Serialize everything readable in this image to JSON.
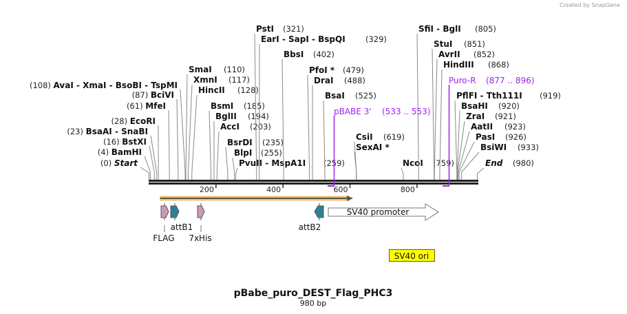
{
  "branding": "Created by SnapGene",
  "title": "pBabe_puro_DEST_Flag_PHC3",
  "length_label": "980 bp",
  "ruler": {
    "ticks": [
      200,
      400,
      600,
      800
    ],
    "total_bp": 980
  },
  "enzymes": [
    {
      "names": [
        "Start"
      ],
      "pos": "(0)",
      "italic": true
    },
    {
      "names": [
        "BamHI"
      ],
      "pos": "(4)"
    },
    {
      "names": [
        "BstXI"
      ],
      "pos": "(16)"
    },
    {
      "names": [
        "BsaAI",
        "SnaBI"
      ],
      "pos": "(23)"
    },
    {
      "names": [
        "EcoRI"
      ],
      "pos": "(28)"
    },
    {
      "names": [
        "MfeI"
      ],
      "pos": "(61)"
    },
    {
      "names": [
        "BciVI"
      ],
      "pos": "(87)"
    },
    {
      "names": [
        "AvaI",
        "XmaI",
        "BsoBI",
        "TspMI"
      ],
      "pos": "(108)"
    },
    {
      "names": [
        "SmaI"
      ],
      "pos": "(110)"
    },
    {
      "names": [
        "XmnI"
      ],
      "pos": "(117)"
    },
    {
      "names": [
        "HincII"
      ],
      "pos": "(128)"
    },
    {
      "names": [
        "BsmI"
      ],
      "pos": "(185)"
    },
    {
      "names": [
        "BglII"
      ],
      "pos": "(194)"
    },
    {
      "names": [
        "AccI"
      ],
      "pos": "(203)"
    },
    {
      "names": [
        "BsrDI"
      ],
      "pos": "(235)"
    },
    {
      "names": [
        "BlpI"
      ],
      "pos": "(255)"
    },
    {
      "names": [
        "PvuII",
        "MspA1I"
      ],
      "pos": "(259)"
    },
    {
      "names": [
        "PstI"
      ],
      "pos": "(321)"
    },
    {
      "names": [
        "EarI",
        "SapI",
        "BspQI"
      ],
      "pos": "(329)"
    },
    {
      "names": [
        "BbsI"
      ],
      "pos": "(402)"
    },
    {
      "names": [
        "PfoI *"
      ],
      "pos": "(479)"
    },
    {
      "names": [
        "DraI"
      ],
      "pos": "(488)"
    },
    {
      "names": [
        "BsaI"
      ],
      "pos": "(525)"
    },
    {
      "names": [
        "CsiI"
      ],
      "pos": "(619)"
    },
    {
      "names": [
        "SexAI *"
      ],
      "pos": ""
    },
    {
      "names": [
        "NcoI"
      ],
      "pos": "(759)"
    },
    {
      "names": [
        "SfiI",
        "BglI"
      ],
      "pos": "(805)"
    },
    {
      "names": [
        "StuI"
      ],
      "pos": "(851)"
    },
    {
      "names": [
        "AvrII"
      ],
      "pos": "(852)"
    },
    {
      "names": [
        "HindIII"
      ],
      "pos": "(868)"
    },
    {
      "names": [
        "PflFI",
        "Tth111I"
      ],
      "pos": "(919)"
    },
    {
      "names": [
        "BsaHI"
      ],
      "pos": "(920)"
    },
    {
      "names": [
        "ZraI"
      ],
      "pos": "(921)"
    },
    {
      "names": [
        "AatII"
      ],
      "pos": "(923)"
    },
    {
      "names": [
        "PasI"
      ],
      "pos": "(926)"
    },
    {
      "names": [
        "BsiWI"
      ],
      "pos": "(933)"
    },
    {
      "names": [
        "End"
      ],
      "pos": "(980)",
      "italic": true
    }
  ],
  "primers": [
    {
      "name": "pBABE 3'",
      "range": "(533 .. 553)"
    },
    {
      "name": "Puro-R",
      "range": "(877 .. 896)"
    }
  ],
  "features": {
    "flag": "FLAG",
    "attb1": "attB1",
    "his": "7xHis",
    "attb2": "attB2",
    "sv40_promoter": "SV40 promoter",
    "sv40_ori": "SV40 ori"
  },
  "colors": {
    "primer": "#a020f0",
    "att": "#2e7f97",
    "tag": "#cc99b4",
    "ori": "#ffff00",
    "orf": "#f5c26b"
  }
}
